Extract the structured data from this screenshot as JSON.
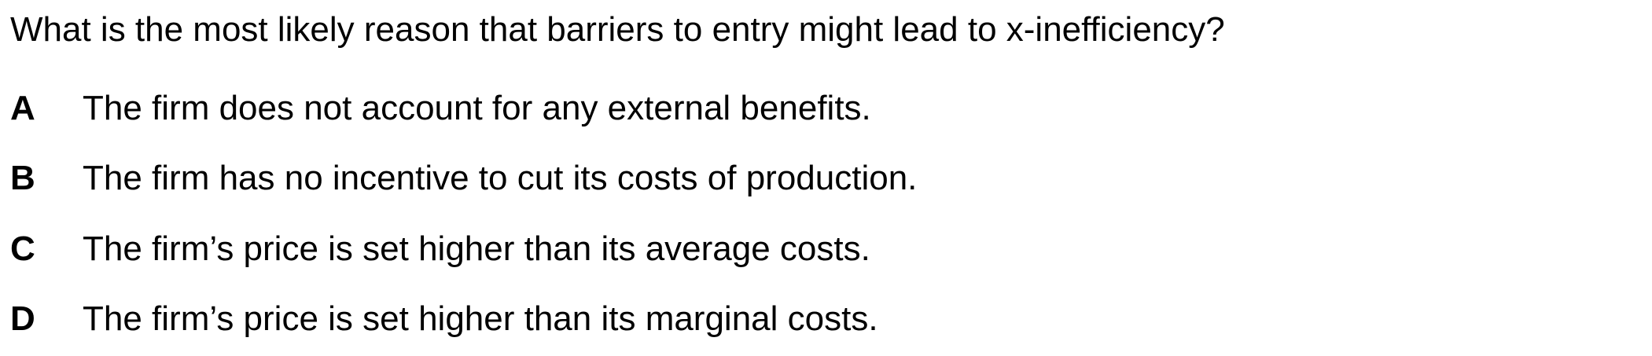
{
  "question": {
    "text": "What is the most likely reason that barriers to entry might lead to x-inefficiency?"
  },
  "options": [
    {
      "letter": "A",
      "text": "The firm does not account for any external benefits."
    },
    {
      "letter": "B",
      "text": "The firm has no incentive to cut its costs of production."
    },
    {
      "letter": "C",
      "text": "The firm’s price is set higher than its average costs."
    },
    {
      "letter": "D",
      "text": "The firm’s price is set higher than its marginal costs."
    }
  ]
}
